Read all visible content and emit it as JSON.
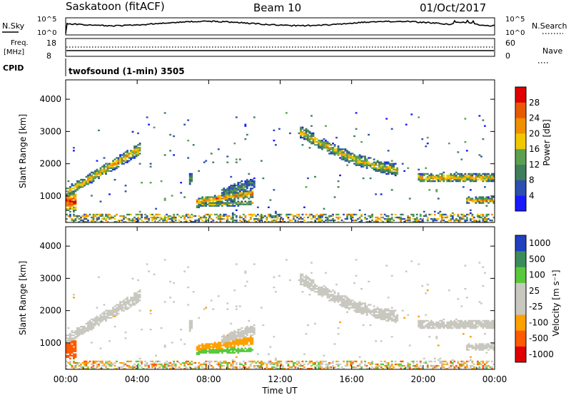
{
  "header": {
    "station": "Saskatoon (fitACF)",
    "beam": "Beam 10",
    "date": "01/Oct/2017"
  },
  "top_panels": {
    "nsky_label": "N.Sky",
    "nsearch_label": "N.Search",
    "noise_ticks": [
      "10^5",
      "10^0"
    ],
    "freq_label_1": "Freq.",
    "freq_label_2": "[MHz]",
    "freq_ticks": [
      "18",
      "8"
    ],
    "nave_label": "Nave",
    "nave_ticks": [
      "60",
      "0"
    ],
    "cpid_label": "CPID",
    "cpid_text": "twofsound (1-min) 3505"
  },
  "colors": {
    "power": [
      "#1a1aff",
      "#2d4fb0",
      "#3f7f5c",
      "#5aa050",
      "#f0c800",
      "#f09000",
      "#e85a00",
      "#e00000"
    ],
    "velocity": [
      "#e00000",
      "#ff5a00",
      "#ffa000",
      "#c8c8c0",
      "#c8c8c0",
      "#5ac83c",
      "#3c8c5a",
      "#2040c0"
    ]
  },
  "chart_data": [
    {
      "type": "heatmap",
      "name": "power",
      "ylabel": "Slant Range [km]",
      "yticks": [
        1000,
        2000,
        3000,
        4000
      ],
      "ylim": [
        180,
        4600
      ],
      "xlim": [
        0,
        24
      ],
      "colorbar_label": "Power [dB]",
      "colorbar_ticks": [
        4,
        8,
        12,
        16,
        20,
        24,
        28
      ],
      "colorbar_range": [
        0,
        32
      ]
    },
    {
      "type": "heatmap",
      "name": "velocity",
      "ylabel": "Slant Range [km]",
      "yticks": [
        1000,
        2000,
        3000,
        4000
      ],
      "ylim": [
        180,
        4600
      ],
      "xlim": [
        0,
        24
      ],
      "xlabel": "Time UT",
      "xticks": [
        "00:00",
        "04:00",
        "08:00",
        "12:00",
        "16:00",
        "20:00",
        "00:00"
      ],
      "colorbar_label": "Velocity [m s⁻¹]",
      "colorbar_ticks": [
        "1000",
        "500",
        "100",
        "25",
        "-25",
        "-100",
        "-500",
        "-1000"
      ]
    }
  ]
}
